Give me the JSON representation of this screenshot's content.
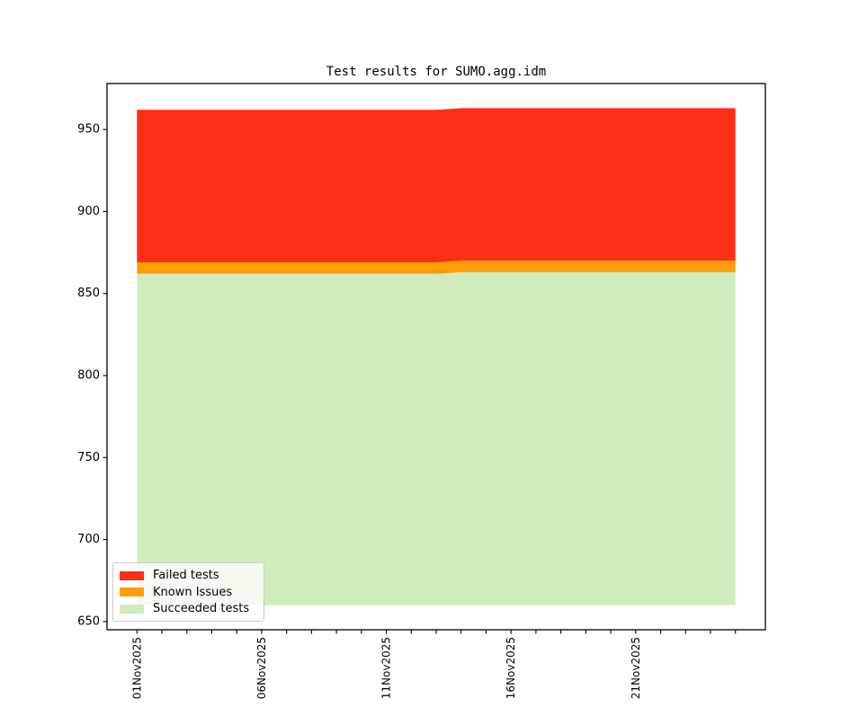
{
  "chart_data": {
    "type": "area",
    "title": "Test results for SUMO.agg.idm",
    "stacked": true,
    "grid": false,
    "x": [
      "01Nov2025",
      "02Nov2025",
      "03Nov2025",
      "04Nov2025",
      "05Nov2025",
      "06Nov2025",
      "07Nov2025",
      "08Nov2025",
      "09Nov2025",
      "10Nov2025",
      "11Nov2025",
      "12Nov2025",
      "13Nov2025",
      "14Nov2025",
      "15Nov2025",
      "16Nov2025",
      "17Nov2025",
      "18Nov2025",
      "19Nov2025",
      "20Nov2025",
      "21Nov2025",
      "22Nov2025",
      "23Nov2025",
      "24Nov2025",
      "25Nov2025"
    ],
    "x_major_tick_indices": [
      0,
      5,
      10,
      15,
      20
    ],
    "x_tick_labels": [
      "01Nov2025",
      "06Nov2025",
      "11Nov2025",
      "16Nov2025",
      "21Nov2025"
    ],
    "y_ticks": [
      650,
      700,
      750,
      800,
      850,
      900,
      950
    ],
    "ylim": [
      645,
      978
    ],
    "xlim_days": [
      -1.2,
      25.2
    ],
    "baseline": 660,
    "series": [
      {
        "name": "Succeeded tests",
        "color": "#d0ecbd",
        "top": [
          862,
          862,
          862,
          862,
          862,
          862,
          862,
          862,
          862,
          862,
          862,
          862,
          862,
          863,
          863,
          863,
          863,
          863,
          863,
          863,
          863,
          863,
          863,
          863,
          863
        ],
        "counts": [
          202,
          202,
          202,
          202,
          202,
          202,
          202,
          202,
          202,
          202,
          202,
          202,
          202,
          203,
          203,
          203,
          203,
          203,
          203,
          203,
          203,
          203,
          203,
          203,
          203
        ]
      },
      {
        "name": "Known Issues",
        "color": "#ff9e06",
        "top": [
          869,
          869,
          869,
          869,
          869,
          869,
          869,
          869,
          869,
          869,
          869,
          869,
          869,
          870,
          870,
          870,
          870,
          870,
          870,
          870,
          870,
          870,
          870,
          870,
          870
        ],
        "counts": [
          7,
          7,
          7,
          7,
          7,
          7,
          7,
          7,
          7,
          7,
          7,
          7,
          7,
          7,
          7,
          7,
          7,
          7,
          7,
          7,
          7,
          7,
          7,
          7,
          7
        ]
      },
      {
        "name": "Failed tests",
        "color": "#fb2f16",
        "top": [
          962,
          962,
          962,
          962,
          962,
          962,
          962,
          962,
          962,
          962,
          962,
          962,
          962,
          963,
          963,
          963,
          963,
          963,
          963,
          963,
          963,
          963,
          963,
          963,
          963
        ],
        "counts": [
          93,
          93,
          93,
          93,
          93,
          93,
          93,
          93,
          93,
          93,
          93,
          93,
          93,
          93,
          93,
          93,
          93,
          93,
          93,
          93,
          93,
          93,
          93,
          93,
          93
        ]
      }
    ],
    "legend_position": "lower left"
  },
  "legend": {
    "items": [
      {
        "label": "Failed tests",
        "color": "#fb2f16"
      },
      {
        "label": "Known Issues",
        "color": "#ff9e06"
      },
      {
        "label": "Succeeded tests",
        "color": "#d0ecbd"
      }
    ]
  }
}
